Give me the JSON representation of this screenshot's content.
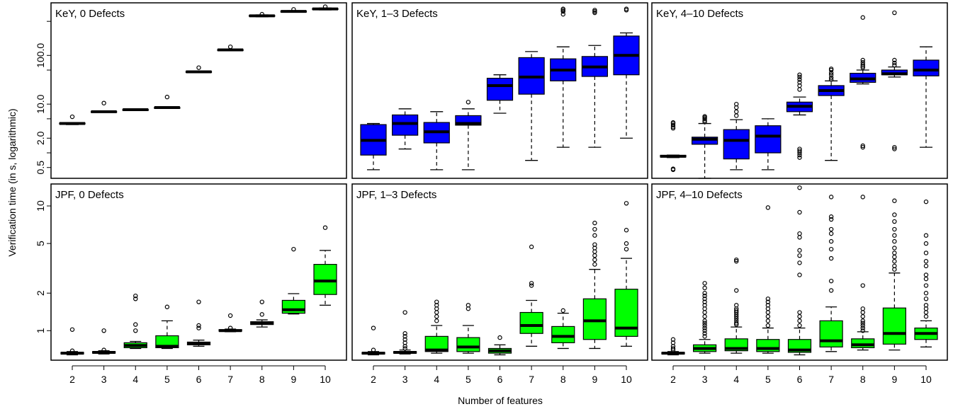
{
  "colors": {
    "key_box": "#0000ff",
    "jpf_box": "#00ff00"
  },
  "figure": {
    "ylabel": "Verification time  (in s, logarithmic)",
    "xlabel": "Number of features"
  },
  "chart_data": [
    {
      "type": "box",
      "title": "KeY, 0 Defects",
      "row": "KeY",
      "y_scale": "log",
      "ylim": [
        0.3,
        1200
      ],
      "yticks": [
        0.5,
        2.0,
        10.0,
        100.0
      ],
      "yticks_minor": [
        0.5,
        2.0,
        10.0,
        100.0
      ],
      "ytick_labels": [
        "0.5",
        "2.0",
        "10.0",
        "100.0"
      ],
      "categories": [
        2,
        3,
        4,
        5,
        6,
        7,
        8,
        9,
        10
      ],
      "boxes": [
        {
          "x": 2,
          "min": 3.8,
          "q1": 3.9,
          "median": 4.0,
          "q3": 4.1,
          "max": 4.2,
          "outliers": [
            5.5
          ]
        },
        {
          "x": 3,
          "min": 6.8,
          "q1": 6.9,
          "median": 7.0,
          "q3": 7.1,
          "max": 7.2,
          "outliers": [
            10.5
          ]
        },
        {
          "x": 4,
          "min": 7.5,
          "q1": 7.6,
          "median": 7.7,
          "q3": 7.8,
          "max": 7.9,
          "outliers": []
        },
        {
          "x": 5,
          "min": 8.3,
          "q1": 8.4,
          "median": 8.5,
          "q3": 8.6,
          "max": 8.7,
          "outliers": [
            14
          ]
        },
        {
          "x": 6,
          "min": 44,
          "q1": 45,
          "median": 46,
          "q3": 47,
          "max": 48,
          "outliers": [
            56
          ]
        },
        {
          "x": 7,
          "min": 125,
          "q1": 128,
          "median": 130,
          "q3": 132,
          "max": 135,
          "outliers": [
            150
          ]
        },
        {
          "x": 8,
          "min": 620,
          "q1": 635,
          "median": 650,
          "q3": 665,
          "max": 680,
          "outliers": [
            700
          ]
        },
        {
          "x": 9,
          "min": 770,
          "q1": 785,
          "median": 800,
          "q3": 815,
          "max": 830,
          "outliers": [
            880
          ]
        },
        {
          "x": 10,
          "min": 860,
          "q1": 880,
          "median": 900,
          "q3": 920,
          "max": 940,
          "outliers": [
            1000
          ]
        }
      ]
    },
    {
      "type": "box",
      "title": "KeY, 1–3 Defects",
      "row": "KeY",
      "y_scale": "log",
      "ylim": [
        0.3,
        1200
      ],
      "categories": [
        2,
        3,
        4,
        5,
        6,
        7,
        8,
        9,
        10
      ],
      "boxes": [
        {
          "x": 2,
          "min": 0.45,
          "q1": 0.9,
          "median": 1.8,
          "q3": 3.8,
          "max": 4.0,
          "outliers": []
        },
        {
          "x": 3,
          "min": 1.2,
          "q1": 2.3,
          "median": 4.0,
          "q3": 6.0,
          "max": 8.0,
          "outliers": []
        },
        {
          "x": 4,
          "min": 0.45,
          "q1": 1.6,
          "median": 2.7,
          "q3": 4.2,
          "max": 7.0,
          "outliers": []
        },
        {
          "x": 5,
          "min": 0.45,
          "q1": 3.7,
          "median": 4.0,
          "q3": 5.8,
          "max": 8.0,
          "outliers": [
            11
          ]
        },
        {
          "x": 6,
          "min": 6.5,
          "q1": 12,
          "median": 24,
          "q3": 34,
          "max": 40,
          "outliers": []
        },
        {
          "x": 7,
          "min": 0.7,
          "q1": 16,
          "median": 36,
          "q3": 90,
          "max": 120,
          "outliers": []
        },
        {
          "x": 8,
          "min": 1.3,
          "q1": 30,
          "median": 50,
          "q3": 85,
          "max": 150,
          "outliers": [
            700,
            800,
            850,
            900
          ]
        },
        {
          "x": 9,
          "min": 1.3,
          "q1": 37,
          "median": 58,
          "q3": 95,
          "max": 160,
          "outliers": [
            750,
            800,
            850
          ]
        },
        {
          "x": 10,
          "min": 2.0,
          "q1": 40,
          "median": 100,
          "q3": 250,
          "max": 290,
          "outliers": [
            850,
            900
          ]
        }
      ]
    },
    {
      "type": "box",
      "title": "KeY, 4–10 Defects",
      "row": "KeY",
      "y_scale": "log",
      "ylim": [
        0.3,
        1200
      ],
      "categories": [
        2,
        3,
        4,
        5,
        6,
        7,
        8,
        9,
        10
      ],
      "boxes": [
        {
          "x": 2,
          "min": 0.8,
          "q1": 0.82,
          "median": 0.85,
          "q3": 0.89,
          "max": 0.9,
          "outliers": [
            0.45,
            0.47,
            3.2,
            3.4,
            3.7,
            4.0,
            4.2
          ]
        },
        {
          "x": 3,
          "min": 0.3,
          "q1": 1.5,
          "median": 1.9,
          "q3": 2.1,
          "max": 4.0,
          "outliers": [
            4.3,
            4.6,
            5.0,
            5.3,
            5.6
          ]
        },
        {
          "x": 4,
          "min": 0.45,
          "q1": 0.75,
          "median": 1.8,
          "q3": 3.0,
          "max": 4.8,
          "outliers": [
            5.8,
            7.0,
            8.5,
            10
          ]
        },
        {
          "x": 5,
          "min": 0.45,
          "q1": 1.0,
          "median": 2.2,
          "q3": 3.6,
          "max": 5.0,
          "outliers": []
        },
        {
          "x": 6,
          "min": 6.0,
          "q1": 7.0,
          "median": 9.0,
          "q3": 11,
          "max": 14,
          "outliers": [
            0.8,
            0.9,
            1.0,
            1.1,
            1.2,
            20,
            24,
            28,
            32,
            36,
            40
          ]
        },
        {
          "x": 7,
          "min": 0.7,
          "q1": 15,
          "median": 19,
          "q3": 24,
          "max": 30,
          "outliers": [
            32,
            35,
            40,
            44,
            50,
            53
          ]
        },
        {
          "x": 8,
          "min": 26,
          "q1": 28,
          "median": 33,
          "q3": 43,
          "max": 50,
          "outliers": [
            1.3,
            1.4,
            56,
            60,
            65,
            72,
            80,
            600
          ]
        },
        {
          "x": 9,
          "min": 36,
          "q1": 40,
          "median": 42,
          "q3": 50,
          "max": 58,
          "outliers": [
            1.2,
            1.3,
            63,
            70,
            80,
            750
          ]
        },
        {
          "x": 10,
          "min": 1.3,
          "q1": 38,
          "median": 50,
          "q3": 80,
          "max": 150,
          "outliers": []
        }
      ]
    },
    {
      "type": "box",
      "title": "JPF, 0 Defects",
      "row": "JPF",
      "y_scale": "log",
      "ylim": [
        0.58,
        15
      ],
      "yticks": [
        1,
        2,
        5,
        10
      ],
      "ytick_labels": [
        "1",
        "2",
        "5",
        "10"
      ],
      "categories": [
        2,
        3,
        4,
        5,
        6,
        7,
        8,
        9,
        10
      ],
      "boxes": [
        {
          "x": 2,
          "min": 0.64,
          "q1": 0.65,
          "median": 0.66,
          "q3": 0.67,
          "max": 0.68,
          "outliers": [
            0.69,
            1.02
          ]
        },
        {
          "x": 3,
          "min": 0.65,
          "q1": 0.66,
          "median": 0.67,
          "q3": 0.68,
          "max": 0.69,
          "outliers": [
            0.7,
            1.0
          ]
        },
        {
          "x": 4,
          "min": 0.72,
          "q1": 0.73,
          "median": 0.76,
          "q3": 0.8,
          "max": 0.82,
          "outliers": [
            1.0,
            1.12,
            1.8,
            1.9
          ]
        },
        {
          "x": 5,
          "min": 0.72,
          "q1": 0.73,
          "median": 0.75,
          "q3": 0.91,
          "max": 1.2,
          "outliers": [
            1.55
          ]
        },
        {
          "x": 6,
          "min": 0.75,
          "q1": 0.77,
          "median": 0.79,
          "q3": 0.81,
          "max": 0.84,
          "outliers": [
            1.05,
            1.1,
            1.7
          ]
        },
        {
          "x": 7,
          "min": 0.98,
          "q1": 0.99,
          "median": 1.0,
          "q3": 1.02,
          "max": 1.03,
          "outliers": [
            1.05,
            1.32
          ]
        },
        {
          "x": 8,
          "min": 1.07,
          "q1": 1.12,
          "median": 1.15,
          "q3": 1.18,
          "max": 1.22,
          "outliers": [
            1.35,
            1.7
          ]
        },
        {
          "x": 9,
          "min": 1.36,
          "q1": 1.38,
          "median": 1.47,
          "q3": 1.75,
          "max": 1.98,
          "outliers": [
            4.5
          ]
        },
        {
          "x": 10,
          "min": 1.6,
          "q1": 1.95,
          "median": 2.5,
          "q3": 3.4,
          "max": 4.4,
          "outliers": [
            6.7
          ]
        }
      ]
    },
    {
      "type": "box",
      "title": "JPF, 1–3 Defects",
      "row": "JPF",
      "y_scale": "log",
      "ylim": [
        0.58,
        15
      ],
      "categories": [
        2,
        3,
        4,
        5,
        6,
        7,
        8,
        9,
        10
      ],
      "boxes": [
        {
          "x": 2,
          "min": 0.64,
          "q1": 0.65,
          "median": 0.66,
          "q3": 0.67,
          "max": 0.68,
          "outliers": [
            0.7,
            1.05
          ]
        },
        {
          "x": 3,
          "min": 0.65,
          "q1": 0.66,
          "median": 0.67,
          "q3": 0.68,
          "max": 0.7,
          "outliers": [
            0.72,
            0.75,
            0.8,
            0.85,
            0.9,
            0.95,
            1.4
          ]
        },
        {
          "x": 4,
          "min": 0.66,
          "q1": 0.68,
          "median": 0.7,
          "q3": 0.9,
          "max": 1.1,
          "outliers": [
            1.2,
            1.3,
            1.4,
            1.5,
            1.6,
            1.7
          ]
        },
        {
          "x": 5,
          "min": 0.66,
          "q1": 0.68,
          "median": 0.74,
          "q3": 0.88,
          "max": 1.1,
          "outliers": [
            1.5,
            1.6
          ]
        },
        {
          "x": 6,
          "min": 0.64,
          "q1": 0.66,
          "median": 0.69,
          "q3": 0.72,
          "max": 0.77,
          "outliers": [
            0.88
          ]
        },
        {
          "x": 7,
          "min": 0.75,
          "q1": 0.95,
          "median": 1.1,
          "q3": 1.4,
          "max": 1.75,
          "outliers": [
            2.3,
            2.4,
            4.7
          ]
        },
        {
          "x": 8,
          "min": 0.72,
          "q1": 0.8,
          "median": 0.9,
          "q3": 1.08,
          "max": 1.38,
          "outliers": [
            1.45
          ]
        },
        {
          "x": 9,
          "min": 0.72,
          "q1": 0.85,
          "median": 1.2,
          "q3": 1.8,
          "max": 3.1,
          "outliers": [
            3.4,
            3.7,
            4.0,
            4.3,
            4.6,
            4.9,
            5.8,
            6.5,
            7.3
          ]
        },
        {
          "x": 10,
          "min": 0.75,
          "q1": 0.9,
          "median": 1.05,
          "q3": 2.15,
          "max": 3.8,
          "outliers": [
            4.5,
            5.0,
            6.4,
            10.5
          ]
        }
      ]
    },
    {
      "type": "box",
      "title": "JPF, 4–10 Defects",
      "row": "JPF",
      "y_scale": "log",
      "ylim": [
        0.58,
        15
      ],
      "categories": [
        2,
        3,
        4,
        5,
        6,
        7,
        8,
        9,
        10
      ],
      "boxes": [
        {
          "x": 2,
          "min": 0.64,
          "q1": 0.65,
          "median": 0.66,
          "q3": 0.67,
          "max": 0.68,
          "outliers": [
            0.7,
            0.72,
            0.75,
            0.8,
            0.85
          ]
        },
        {
          "x": 3,
          "min": 0.66,
          "q1": 0.68,
          "median": 0.72,
          "q3": 0.77,
          "max": 0.85,
          "outliers": [
            0.9,
            0.95,
            1.0,
            1.05,
            1.1,
            1.15,
            1.2,
            1.3,
            1.4,
            1.5,
            1.6,
            1.7,
            1.8,
            1.9,
            2.0,
            2.2,
            2.4
          ]
        },
        {
          "x": 4,
          "min": 0.66,
          "q1": 0.69,
          "median": 0.72,
          "q3": 0.86,
          "max": 1.07,
          "outliers": [
            1.12,
            1.15,
            1.2,
            1.25,
            1.3,
            1.35,
            1.4,
            1.45,
            1.5,
            1.6,
            2.1,
            3.6,
            3.7
          ]
        },
        {
          "x": 5,
          "min": 0.66,
          "q1": 0.68,
          "median": 0.72,
          "q3": 0.85,
          "max": 1.05,
          "outliers": [
            1.1,
            1.2,
            1.3,
            1.4,
            1.5,
            1.6,
            1.7,
            1.8,
            9.7
          ]
        },
        {
          "x": 6,
          "min": 0.64,
          "q1": 0.67,
          "median": 0.7,
          "q3": 0.85,
          "max": 1.05,
          "outliers": [
            1.1,
            1.2,
            1.3,
            1.4,
            2.8,
            3.5,
            4.0,
            4.4,
            5.6,
            6.0,
            8.9,
            14
          ]
        },
        {
          "x": 7,
          "min": 0.68,
          "q1": 0.74,
          "median": 0.83,
          "q3": 1.2,
          "max": 1.55,
          "outliers": [
            2.1,
            2.5,
            3.8,
            4.5,
            5.2,
            6.0,
            6.5,
            7.8,
            8.2,
            11.8
          ]
        },
        {
          "x": 8,
          "min": 0.7,
          "q1": 0.73,
          "median": 0.77,
          "q3": 0.86,
          "max": 0.98,
          "outliers": [
            1.0,
            1.05,
            1.1,
            1.15,
            1.2,
            1.3,
            1.4,
            1.5,
            2.3,
            11.8
          ]
        },
        {
          "x": 9,
          "min": 0.7,
          "q1": 0.78,
          "median": 0.95,
          "q3": 1.52,
          "max": 2.9,
          "outliers": [
            3.1,
            3.3,
            3.6,
            3.9,
            4.2,
            4.6,
            5.2,
            5.8,
            6.5,
            7.5,
            8.5,
            11
          ]
        },
        {
          "x": 10,
          "min": 0.74,
          "q1": 0.85,
          "median": 0.95,
          "q3": 1.05,
          "max": 1.2,
          "outliers": [
            1.3,
            1.4,
            1.5,
            1.6,
            1.8,
            2.0,
            2.3,
            2.6,
            2.8,
            3.3,
            3.6,
            4.2,
            5.0,
            5.8,
            10.8
          ]
        }
      ]
    }
  ]
}
